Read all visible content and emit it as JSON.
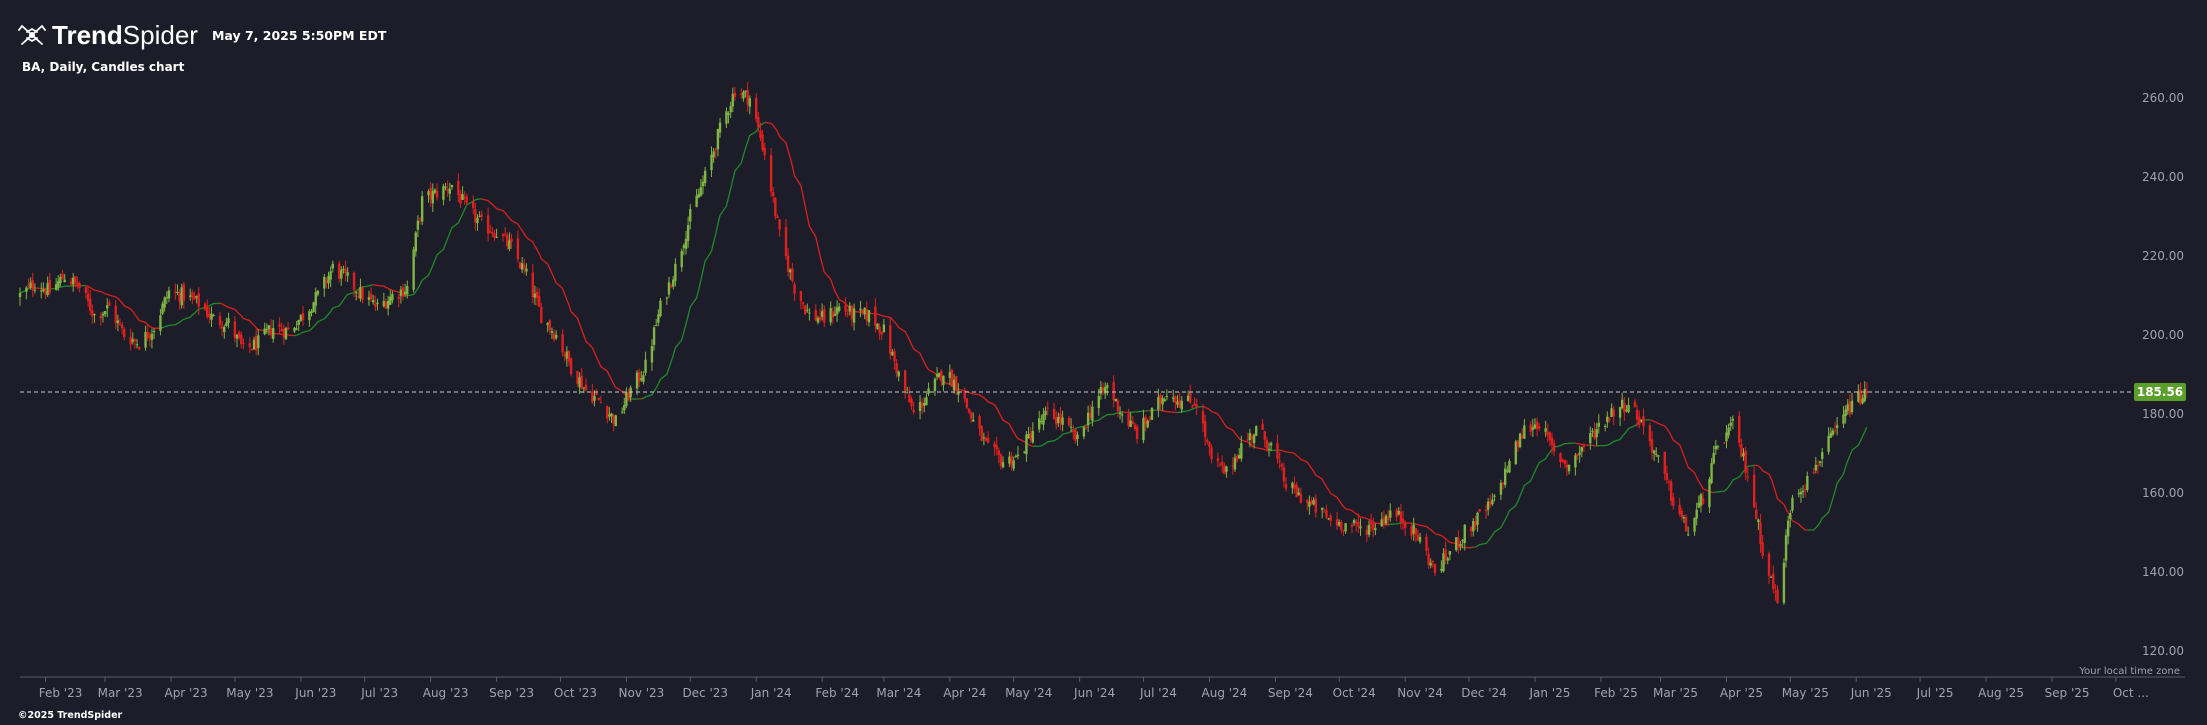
{
  "header": {
    "logo_bold": "Trend",
    "logo_light": "Spider",
    "timestamp": "May 7, 2025 5:50PM EDT"
  },
  "symbol_line": "BA, Daily, Candles chart",
  "footer": {
    "copyright": "©2025 TrendSpider",
    "timezone_note": "Your local time zone"
  },
  "colors": {
    "background": "#1c1d28",
    "up": "#7fb544",
    "down": "#e0201f",
    "ma_up": "#1f8a2a",
    "ma_down": "#d9201f",
    "axis_text": "#a0a3ad",
    "price_badge": "#5a9e2c"
  },
  "chart_data": {
    "type": "candlestick",
    "symbol": "BA",
    "interval": "Daily",
    "ylim": [
      115,
      268
    ],
    "y_ticks": [
      120,
      140,
      160,
      180,
      200,
      220,
      240,
      260
    ],
    "y_tick_labels": [
      "120.00",
      "140.00",
      "160.00",
      "180.00",
      "200.00",
      "220.00",
      "240.00",
      "260.00"
    ],
    "x_tick_labels": [
      "Feb '23",
      "Mar '23",
      "Apr '23",
      "May '23",
      "Jun '23",
      "Jul '23",
      "Aug '23",
      "Sep '23",
      "Oct '23",
      "Nov '23",
      "Dec '23",
      "Jan '24",
      "Feb '24",
      "Mar '24",
      "Apr '24",
      "May '24",
      "Jun '24",
      "Jul '24",
      "Aug '24",
      "Sep '24",
      "Oct '24",
      "Nov '24",
      "Dec '24",
      "Jan '25",
      "Feb '25",
      "Mar '25",
      "Apr '25",
      "May '25",
      "Jun '25",
      "Jul '25",
      "Aug '25",
      "Sep '25",
      "Oct ..."
    ],
    "last_price": 185.56,
    "last_price_label": "185.56",
    "price_path": [
      [
        "2023-01-20",
        210
      ],
      [
        "2023-01-27",
        213
      ],
      [
        "2023-02-03",
        211
      ],
      [
        "2023-02-10",
        215
      ],
      [
        "2023-02-17",
        212
      ],
      [
        "2023-02-24",
        205
      ],
      [
        "2023-03-03",
        207
      ],
      [
        "2023-03-10",
        200
      ],
      [
        "2023-03-17",
        198
      ],
      [
        "2023-03-24",
        202
      ],
      [
        "2023-03-31",
        211
      ],
      [
        "2023-04-07",
        210
      ],
      [
        "2023-04-14",
        208
      ],
      [
        "2023-04-21",
        204
      ],
      [
        "2023-04-28",
        203
      ],
      [
        "2023-05-05",
        196
      ],
      [
        "2023-05-12",
        198
      ],
      [
        "2023-05-19",
        202
      ],
      [
        "2023-05-26",
        201
      ],
      [
        "2023-06-02",
        205
      ],
      [
        "2023-06-09",
        210
      ],
      [
        "2023-06-16",
        217
      ],
      [
        "2023-06-23",
        214
      ],
      [
        "2023-06-30",
        210
      ],
      [
        "2023-07-07",
        207
      ],
      [
        "2023-07-14",
        210
      ],
      [
        "2023-07-21",
        212
      ],
      [
        "2023-07-28",
        234
      ],
      [
        "2023-08-04",
        236
      ],
      [
        "2023-08-11",
        238
      ],
      [
        "2023-08-18",
        232
      ],
      [
        "2023-08-25",
        228
      ],
      [
        "2023-09-01",
        226
      ],
      [
        "2023-09-08",
        222
      ],
      [
        "2023-09-15",
        215
      ],
      [
        "2023-09-22",
        205
      ],
      [
        "2023-09-29",
        200
      ],
      [
        "2023-10-06",
        192
      ],
      [
        "2023-10-13",
        186
      ],
      [
        "2023-10-20",
        183
      ],
      [
        "2023-10-27",
        178
      ],
      [
        "2023-11-03",
        186
      ],
      [
        "2023-11-10",
        192
      ],
      [
        "2023-11-17",
        207
      ],
      [
        "2023-11-24",
        217
      ],
      [
        "2023-12-01",
        230
      ],
      [
        "2023-12-08",
        240
      ],
      [
        "2023-12-15",
        252
      ],
      [
        "2023-12-22",
        262
      ],
      [
        "2023-12-29",
        260
      ],
      [
        "2024-01-05",
        246
      ],
      [
        "2024-01-12",
        225
      ],
      [
        "2024-01-19",
        212
      ],
      [
        "2024-01-26",
        205
      ],
      [
        "2024-02-02",
        204
      ],
      [
        "2024-02-09",
        207
      ],
      [
        "2024-02-16",
        205
      ],
      [
        "2024-02-23",
        205
      ],
      [
        "2024-03-01",
        201
      ],
      [
        "2024-03-08",
        190
      ],
      [
        "2024-03-15",
        180
      ],
      [
        "2024-03-22",
        185
      ],
      [
        "2024-03-29",
        191
      ],
      [
        "2024-04-05",
        187
      ],
      [
        "2024-04-12",
        178
      ],
      [
        "2024-04-19",
        171
      ],
      [
        "2024-04-26",
        168
      ],
      [
        "2024-05-03",
        169
      ],
      [
        "2024-05-10",
        176
      ],
      [
        "2024-05-17",
        180
      ],
      [
        "2024-05-24",
        178
      ],
      [
        "2024-05-31",
        173
      ],
      [
        "2024-06-07",
        182
      ],
      [
        "2024-06-14",
        187
      ],
      [
        "2024-06-21",
        180
      ],
      [
        "2024-06-28",
        175
      ],
      [
        "2024-07-05",
        180
      ],
      [
        "2024-07-12",
        186
      ],
      [
        "2024-07-19",
        183
      ],
      [
        "2024-07-26",
        183
      ],
      [
        "2024-08-02",
        168
      ],
      [
        "2024-08-09",
        165
      ],
      [
        "2024-08-16",
        172
      ],
      [
        "2024-08-23",
        176
      ],
      [
        "2024-08-30",
        172
      ],
      [
        "2024-09-06",
        162
      ],
      [
        "2024-09-13",
        159
      ],
      [
        "2024-09-20",
        156
      ],
      [
        "2024-09-27",
        153
      ],
      [
        "2024-10-04",
        152
      ],
      [
        "2024-10-11",
        151
      ],
      [
        "2024-10-18",
        152
      ],
      [
        "2024-10-25",
        155
      ],
      [
        "2024-11-01",
        153
      ],
      [
        "2024-11-08",
        148
      ],
      [
        "2024-11-15",
        140
      ],
      [
        "2024-11-22",
        145
      ],
      [
        "2024-11-29",
        150
      ],
      [
        "2024-12-06",
        154
      ],
      [
        "2024-12-13",
        158
      ],
      [
        "2024-12-20",
        168
      ],
      [
        "2024-12-27",
        176
      ],
      [
        "2025-01-03",
        178
      ],
      [
        "2025-01-10",
        170
      ],
      [
        "2025-01-17",
        167
      ],
      [
        "2025-01-24",
        172
      ],
      [
        "2025-01-31",
        177
      ],
      [
        "2025-02-07",
        181
      ],
      [
        "2025-02-14",
        183
      ],
      [
        "2025-02-21",
        177
      ],
      [
        "2025-02-28",
        168
      ],
      [
        "2025-03-07",
        158
      ],
      [
        "2025-03-14",
        150
      ],
      [
        "2025-03-21",
        159
      ],
      [
        "2025-03-28",
        172
      ],
      [
        "2025-04-04",
        177
      ],
      [
        "2025-04-11",
        165
      ],
      [
        "2025-04-18",
        146
      ],
      [
        "2025-04-25",
        132
      ],
      [
        "2025-05-02",
        160
      ],
      [
        "2025-05-09",
        163
      ],
      [
        "2025-05-16",
        170
      ],
      [
        "2025-05-23",
        176
      ],
      [
        "2025-05-30",
        183
      ],
      [
        "2025-06-06",
        185
      ]
    ]
  }
}
